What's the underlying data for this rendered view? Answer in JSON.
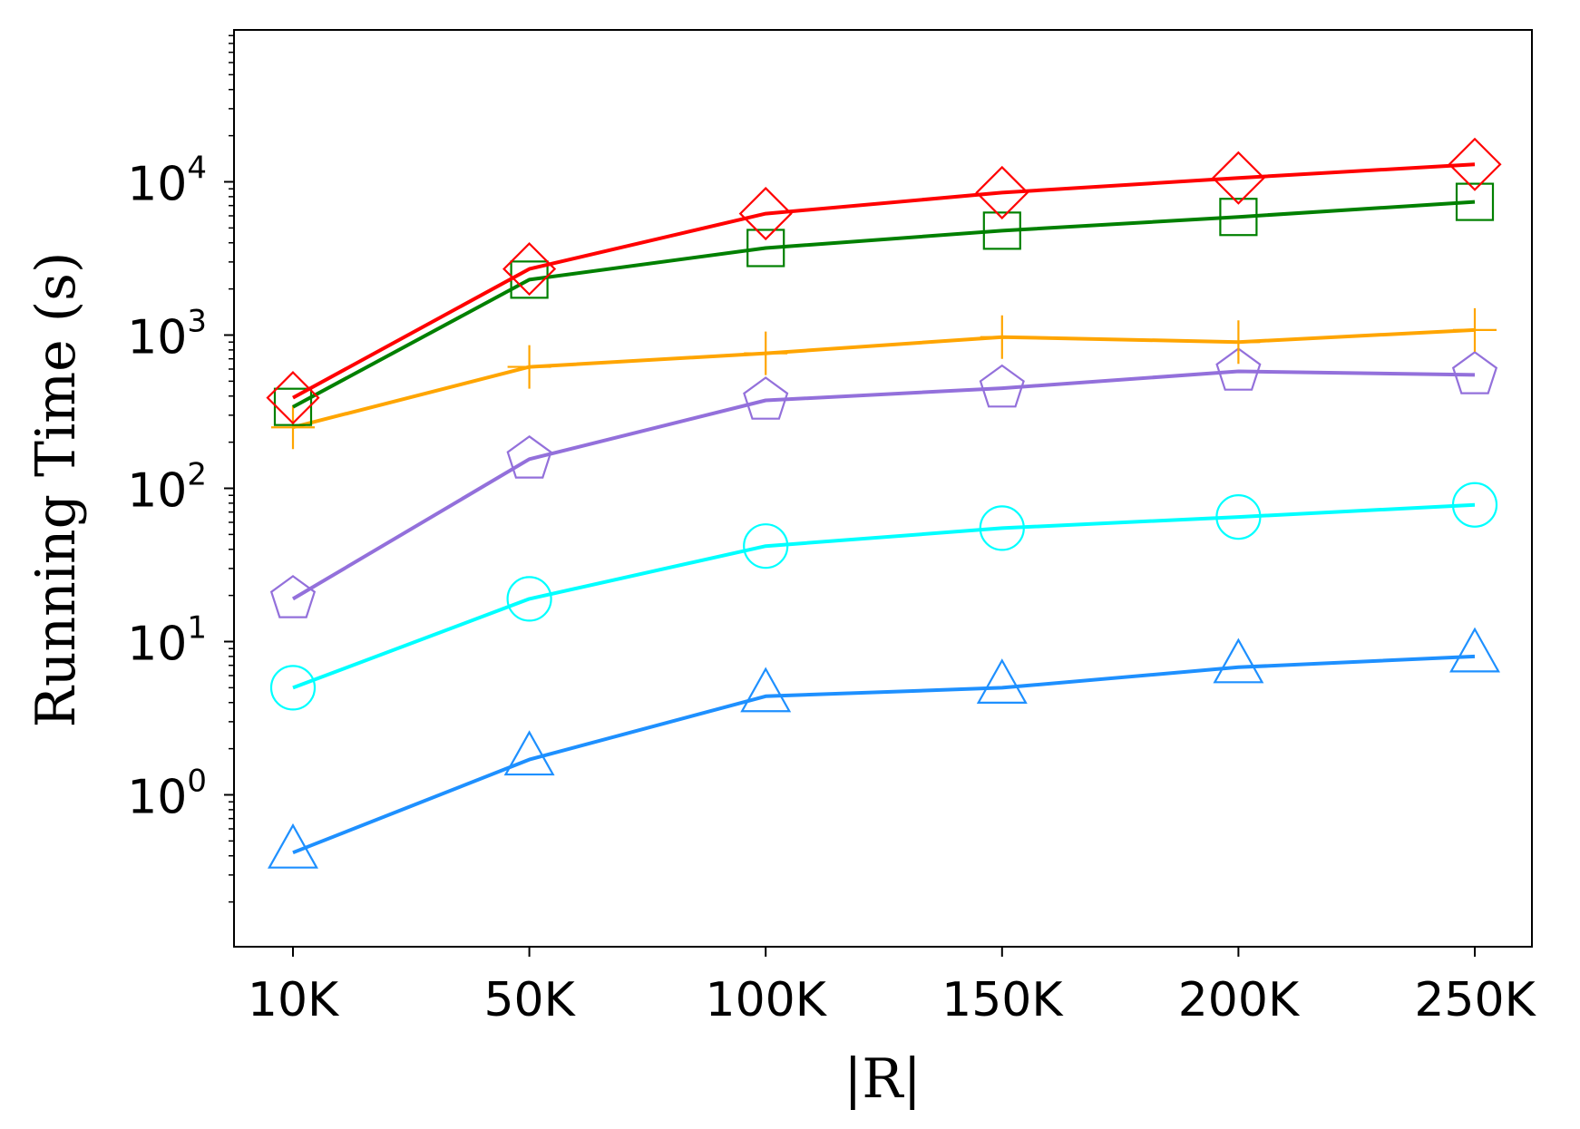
{
  "chart_data": {
    "type": "line",
    "xlabel": "|R|",
    "ylabel": "Running Time (s)",
    "y_scale": "log",
    "ylim": [
      0.1,
      100000
    ],
    "categories": [
      "10K",
      "50K",
      "100K",
      "150K",
      "200K",
      "250K"
    ],
    "y_tick_labels": [
      {
        "base": "10",
        "exp": "0",
        "value": 1
      },
      {
        "base": "10",
        "exp": "1",
        "value": 10
      },
      {
        "base": "10",
        "exp": "2",
        "value": 100
      },
      {
        "base": "10",
        "exp": "3",
        "value": 1000
      },
      {
        "base": "10",
        "exp": "4",
        "value": 10000
      }
    ],
    "grid": false,
    "legend": "none",
    "series": [
      {
        "color": "#ff0000",
        "marker": "diamond",
        "values": [
          390,
          2700,
          6200,
          8500,
          10600,
          13000
        ]
      },
      {
        "color": "#008000",
        "marker": "square",
        "values": [
          340,
          2300,
          3700,
          4800,
          5900,
          7400
        ]
      },
      {
        "color": "#ffa500",
        "marker": "plus",
        "values": [
          250,
          620,
          760,
          970,
          900,
          1080
        ]
      },
      {
        "color": "#9370db",
        "marker": "pentagon",
        "values": [
          19,
          155,
          375,
          450,
          580,
          550
        ]
      },
      {
        "color": "#00ffff",
        "marker": "circle",
        "values": [
          5.0,
          19,
          42,
          55,
          65,
          78
        ]
      },
      {
        "color": "#1e90ff",
        "marker": "triangle",
        "values": [
          0.42,
          1.7,
          4.4,
          5.0,
          6.8,
          8.0
        ]
      }
    ]
  }
}
